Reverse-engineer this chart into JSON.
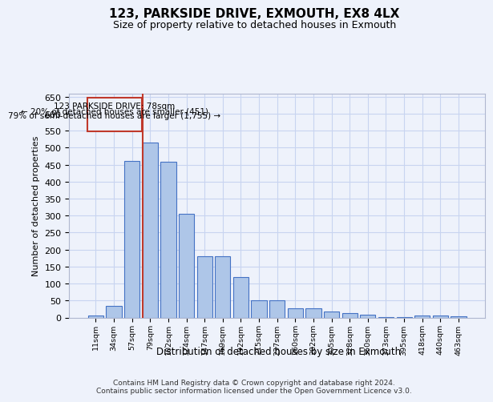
{
  "title": "123, PARKSIDE DRIVE, EXMOUTH, EX8 4LX",
  "subtitle": "Size of property relative to detached houses in Exmouth",
  "xlabel": "Distribution of detached houses by size in Exmouth",
  "ylabel": "Number of detached properties",
  "categories": [
    "11sqm",
    "34sqm",
    "57sqm",
    "79sqm",
    "102sqm",
    "124sqm",
    "147sqm",
    "169sqm",
    "192sqm",
    "215sqm",
    "237sqm",
    "260sqm",
    "282sqm",
    "305sqm",
    "328sqm",
    "350sqm",
    "373sqm",
    "395sqm",
    "418sqm",
    "440sqm",
    "463sqm"
  ],
  "values": [
    7,
    35,
    460,
    515,
    458,
    305,
    180,
    180,
    120,
    50,
    50,
    27,
    27,
    18,
    13,
    9,
    2,
    2,
    7,
    7,
    4
  ],
  "bar_color": "#aec6e8",
  "bar_edge_color": "#4472c4",
  "marker_label": "123 PARKSIDE DRIVE: 78sqm",
  "annotation_line1": "← 20% of detached houses are smaller (451)",
  "annotation_line2": "79% of semi-detached houses are larger (1,755) →",
  "vline_color": "#c0392b",
  "annotation_box_color": "#c0392b",
  "bg_color": "#eef2fb",
  "grid_color": "#c8d4f0",
  "ylim": [
    0,
    660
  ],
  "yticks": [
    0,
    50,
    100,
    150,
    200,
    250,
    300,
    350,
    400,
    450,
    500,
    550,
    600,
    650
  ],
  "footer1": "Contains HM Land Registry data © Crown copyright and database right 2024.",
  "footer2": "Contains public sector information licensed under the Open Government Licence v3.0."
}
